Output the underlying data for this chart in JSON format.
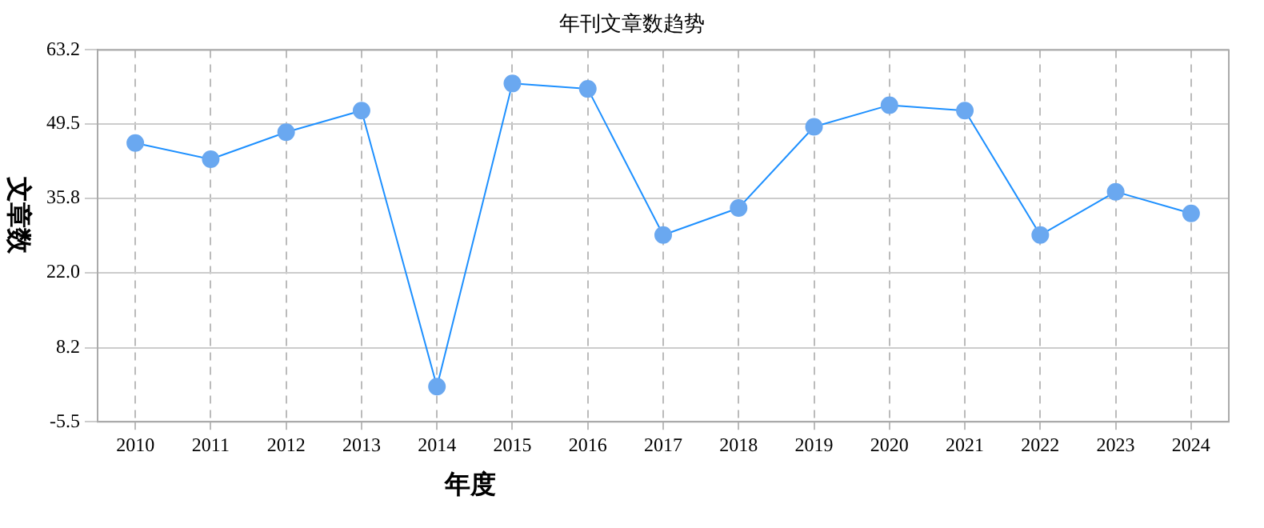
{
  "chart_data": {
    "type": "line",
    "title": "年刊文章数趋势",
    "xlabel": "年度",
    "ylabel": "文章数",
    "categories": [
      "2010",
      "2011",
      "2012",
      "2013",
      "2014",
      "2015",
      "2016",
      "2017",
      "2018",
      "2019",
      "2020",
      "2021",
      "2022",
      "2023",
      "2024"
    ],
    "series": [
      {
        "color": "#1e90ff",
        "values": [
          46,
          43,
          48,
          52,
          1,
          57,
          56,
          29,
          34,
          49,
          53,
          52,
          29,
          37,
          33
        ]
      }
    ],
    "ylim": [
      -5.5,
      63.2
    ],
    "yticks": [
      -5.5,
      8.2,
      {
        "value": 22,
        "label": "22.0"
      },
      35.8,
      49.5,
      63.2
    ],
    "grid": true,
    "legend": false,
    "marker": "circle",
    "line_style": "solid"
  }
}
